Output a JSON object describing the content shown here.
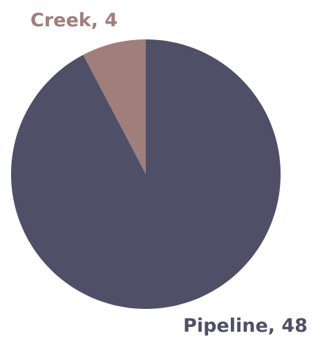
{
  "chart_data": {
    "type": "pie",
    "title": "",
    "slices": [
      {
        "label": "Pipeline",
        "value": 48,
        "color": "#4f4f68",
        "data_label": "Pipeline, 48"
      },
      {
        "label": "Creek",
        "value": 4,
        "color": "#a07e7b",
        "data_label": "Creek, 4"
      }
    ],
    "legend": "none"
  }
}
